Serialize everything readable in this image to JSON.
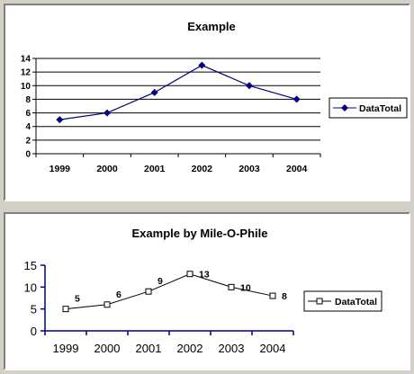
{
  "chart_data": [
    {
      "type": "line",
      "title": "Example",
      "categories": [
        "1999",
        "2000",
        "2001",
        "2002",
        "2003",
        "2004"
      ],
      "series": [
        {
          "name": "DataTotal",
          "values": [
            5,
            6,
            9,
            13,
            10,
            8
          ]
        }
      ],
      "ylim": [
        0,
        14
      ],
      "yticks": [
        0,
        2,
        4,
        6,
        8,
        10,
        12,
        14
      ],
      "grid": true,
      "legend": "right",
      "marker": "diamond",
      "color": "#000080"
    },
    {
      "type": "line",
      "title": "Example by Mile-O-Phile",
      "categories": [
        "1999",
        "2000",
        "2001",
        "2002",
        "2003",
        "2004"
      ],
      "series": [
        {
          "name": "DataTotal",
          "values": [
            5,
            6,
            9,
            13,
            10,
            8
          ]
        }
      ],
      "data_labels": [
        "5",
        "6",
        "9",
        "13",
        "10",
        "8"
      ],
      "ylim": [
        0,
        15
      ],
      "yticks": [
        0,
        5,
        10,
        15
      ],
      "grid": false,
      "legend": "right",
      "marker": "square",
      "color": "#000000"
    }
  ]
}
